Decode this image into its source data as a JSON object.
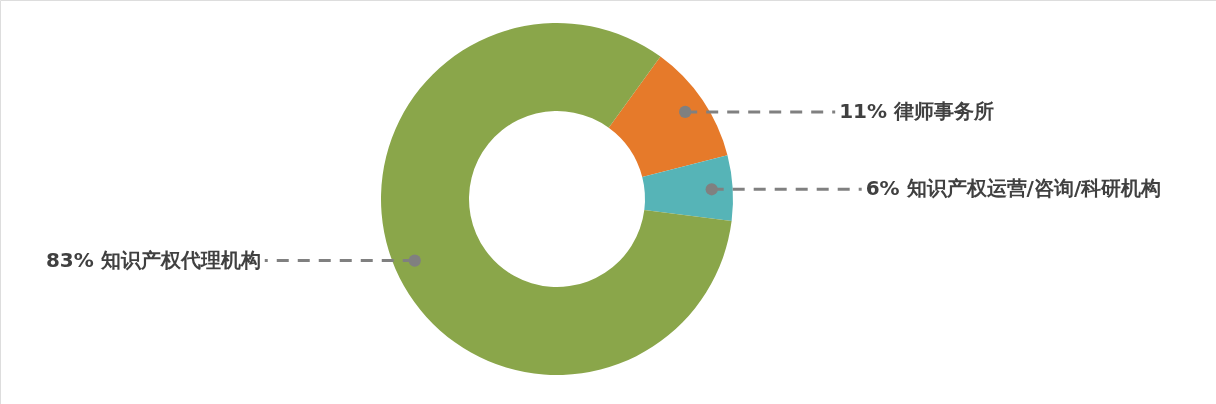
{
  "chart_data": {
    "type": "donut",
    "categories": [
      "律师事务所",
      "知识产权运营/咨询/科研机构",
      "知识产权代理机构"
    ],
    "values": [
      11,
      6,
      83
    ],
    "colors": [
      "#e67a2a",
      "#56b4b7",
      "#8aa64a"
    ],
    "value_labels": [
      "11%",
      "6%",
      "83%"
    ]
  }
}
